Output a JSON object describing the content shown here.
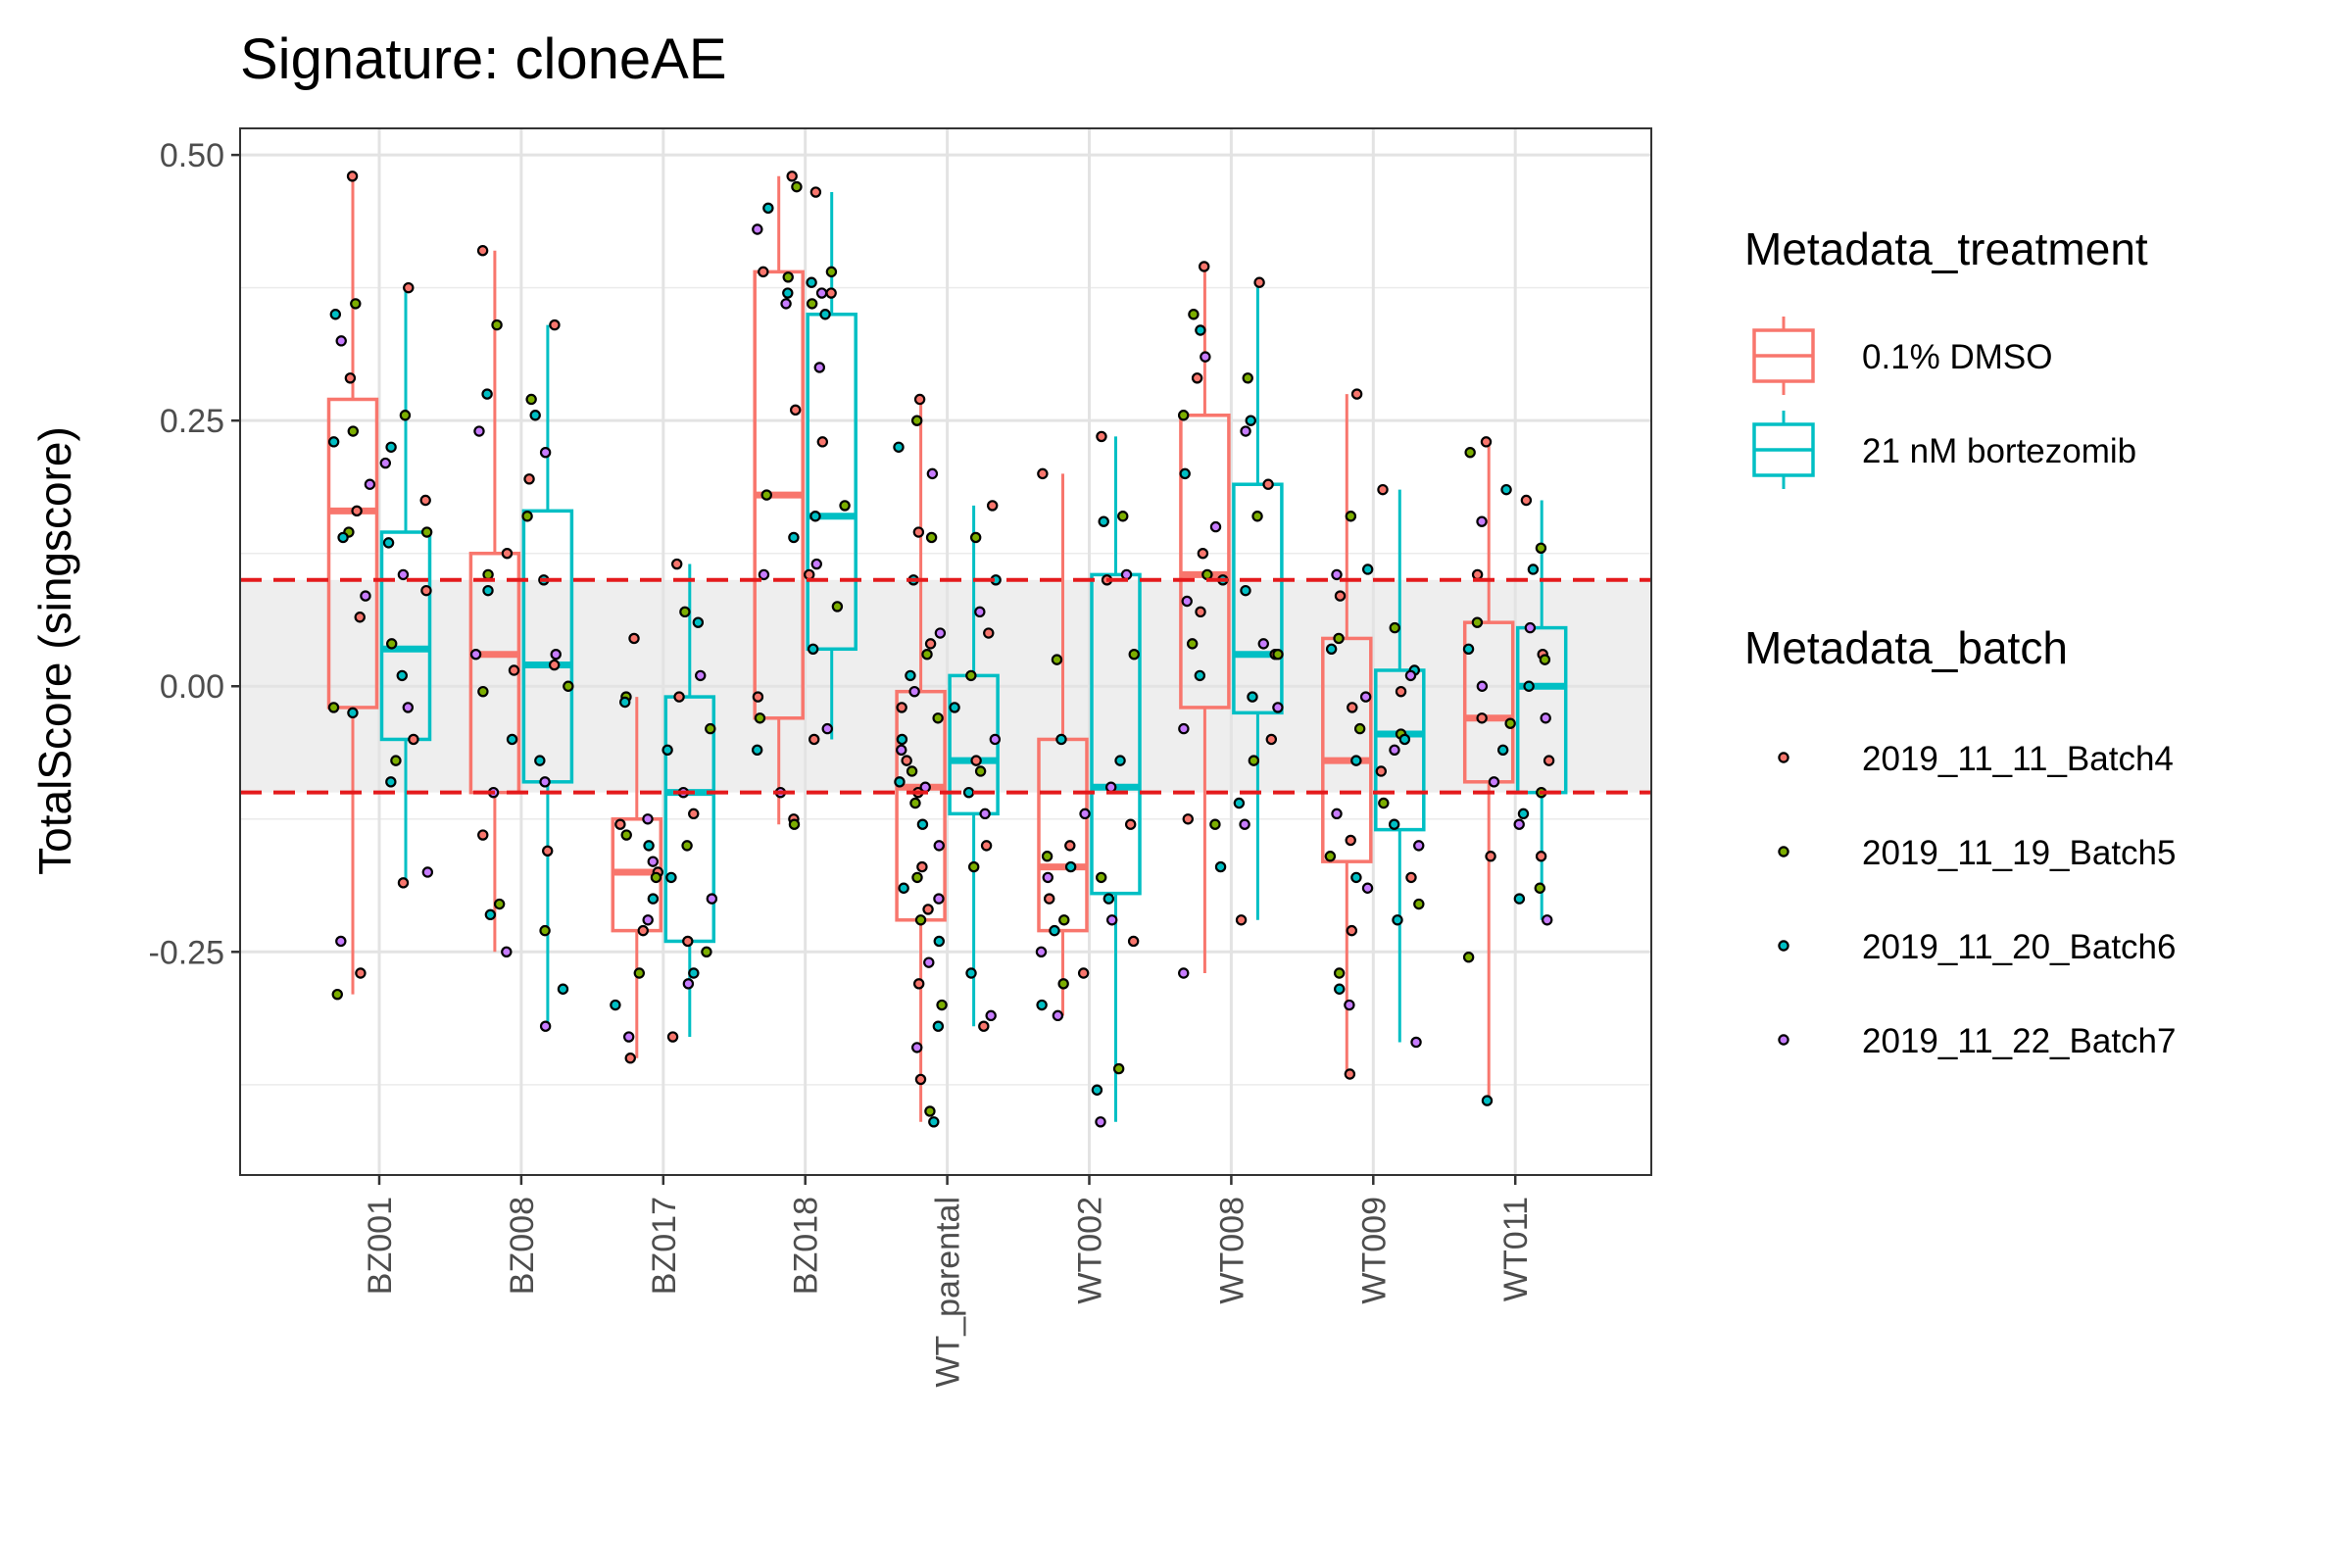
{
  "chart_data": {
    "type": "box",
    "title": "Signature: cloneAE",
    "xlabel": "",
    "ylabel": "TotalScore (singscore)",
    "ylim": [
      -0.46,
      0.525
    ],
    "yticks": [
      "0.50",
      "0.25",
      "0.00",
      "-0.25"
    ],
    "ytick_values": [
      0.5,
      0.25,
      0.0,
      -0.25
    ],
    "grid": true,
    "threshold_lines": [
      0.1,
      -0.1
    ],
    "threshold_color": "#e41a1c",
    "shaded_band": [
      -0.1,
      0.1
    ],
    "categories": [
      "BZ001",
      "BZ008",
      "BZ017",
      "BZ018",
      "WT_parental",
      "WT002",
      "WT008",
      "WT009",
      "WT011"
    ],
    "legend_treatment": {
      "title": "Metadata_treatment",
      "entries": [
        {
          "label": "0.1% DMSO",
          "color": "#f8766d"
        },
        {
          "label": "21 nM bortezomib",
          "color": "#00bfc4"
        }
      ]
    },
    "legend_batch": {
      "title": "Metadata_batch",
      "entries": [
        {
          "label": "2019_11_11_Batch4",
          "color": "#f8766d"
        },
        {
          "label": "2019_11_19_Batch5",
          "color": "#7cae00"
        },
        {
          "label": "2019_11_20_Batch6",
          "color": "#00bfc4"
        },
        {
          "label": "2019_11_22_Batch7",
          "color": "#c77cff"
        }
      ]
    },
    "series": [
      {
        "name": "0.1% DMSO",
        "color": "#f8766d",
        "boxes": [
          {
            "category": "BZ001",
            "min": -0.29,
            "q1": -0.02,
            "median": 0.165,
            "q3": 0.27,
            "max": 0.48
          },
          {
            "category": "BZ008",
            "min": -0.25,
            "q1": -0.1,
            "median": 0.03,
            "q3": 0.125,
            "max": 0.41
          },
          {
            "category": "BZ017",
            "min": -0.35,
            "q1": -0.23,
            "median": -0.175,
            "q3": -0.125,
            "max": -0.01
          },
          {
            "category": "BZ018",
            "min": -0.13,
            "q1": -0.03,
            "median": 0.18,
            "q3": 0.39,
            "max": 0.48
          },
          {
            "category": "WT_parental",
            "min": -0.41,
            "q1": -0.22,
            "median": -0.095,
            "q3": -0.005,
            "max": 0.27
          },
          {
            "category": "WT002",
            "min": -0.31,
            "q1": -0.23,
            "median": -0.17,
            "q3": -0.05,
            "max": 0.2
          },
          {
            "category": "WT008",
            "min": -0.27,
            "q1": -0.02,
            "median": 0.105,
            "q3": 0.255,
            "max": 0.395
          },
          {
            "category": "WT009",
            "min": -0.365,
            "q1": -0.165,
            "median": -0.07,
            "q3": 0.045,
            "max": 0.275
          },
          {
            "category": "WT011",
            "min": -0.39,
            "q1": -0.09,
            "median": -0.03,
            "q3": 0.06,
            "max": 0.23
          }
        ]
      },
      {
        "name": "21 nM bortezomib",
        "color": "#00bfc4",
        "boxes": [
          {
            "category": "BZ001",
            "min": -0.185,
            "q1": -0.05,
            "median": 0.035,
            "q3": 0.145,
            "max": 0.375
          },
          {
            "category": "BZ008",
            "min": -0.32,
            "q1": -0.09,
            "median": 0.02,
            "q3": 0.165,
            "max": 0.34
          },
          {
            "category": "BZ017",
            "min": -0.33,
            "q1": -0.24,
            "median": -0.1,
            "q3": -0.01,
            "max": 0.115
          },
          {
            "category": "BZ018",
            "min": -0.05,
            "q1": 0.035,
            "median": 0.16,
            "q3": 0.35,
            "max": 0.465
          },
          {
            "category": "WT_parental",
            "min": -0.32,
            "q1": -0.12,
            "median": -0.07,
            "q3": 0.01,
            "max": 0.17
          },
          {
            "category": "WT002",
            "min": -0.41,
            "q1": -0.195,
            "median": -0.095,
            "q3": 0.105,
            "max": 0.235
          },
          {
            "category": "WT008",
            "min": -0.22,
            "q1": -0.025,
            "median": 0.03,
            "q3": 0.19,
            "max": 0.38
          },
          {
            "category": "WT009",
            "min": -0.335,
            "q1": -0.135,
            "median": -0.045,
            "q3": 0.015,
            "max": 0.185
          },
          {
            "category": "WT011",
            "min": -0.22,
            "q1": -0.1,
            "median": 0.0,
            "q3": 0.055,
            "max": 0.175
          }
        ]
      }
    ],
    "points": [
      {
        "category": "BZ001",
        "treatment": "0.1% DMSO",
        "values": [
          0.48,
          0.36,
          0.35,
          0.325,
          0.29,
          0.24,
          0.23,
          0.19,
          0.165,
          0.145,
          0.14,
          0.085,
          0.065,
          -0.02,
          -0.025,
          -0.24,
          -0.27,
          -0.29
        ]
      },
      {
        "category": "BZ001",
        "treatment": "21 nM bortezomib",
        "values": [
          0.375,
          0.255,
          0.225,
          0.21,
          0.175,
          0.145,
          0.135,
          0.105,
          0.09,
          0.04,
          0.01,
          -0.02,
          -0.05,
          -0.07,
          -0.09,
          -0.175,
          -0.185
        ]
      },
      {
        "category": "BZ008",
        "treatment": "0.1% DMSO",
        "values": [
          0.41,
          0.34,
          0.275,
          0.24,
          0.125,
          0.105,
          0.09,
          0.03,
          0.015,
          -0.005,
          -0.05,
          -0.1,
          -0.14,
          -0.205,
          -0.215,
          -0.25
        ]
      },
      {
        "category": "BZ008",
        "treatment": "21 nM bortezomib",
        "values": [
          0.34,
          0.27,
          0.255,
          0.22,
          0.195,
          0.16,
          0.1,
          0.03,
          0.02,
          0.0,
          -0.07,
          -0.09,
          -0.155,
          -0.23,
          -0.285,
          -0.32
        ]
      },
      {
        "category": "BZ017",
        "treatment": "0.1% DMSO",
        "values": [
          0.045,
          -0.01,
          -0.015,
          -0.125,
          -0.13,
          -0.14,
          -0.15,
          -0.165,
          -0.175,
          -0.18,
          -0.2,
          -0.22,
          -0.23,
          -0.27,
          -0.3,
          -0.33,
          -0.35
        ]
      },
      {
        "category": "BZ017",
        "treatment": "21 nM bortezomib",
        "values": [
          0.115,
          0.07,
          0.06,
          0.01,
          -0.01,
          -0.04,
          -0.06,
          -0.1,
          -0.12,
          -0.15,
          -0.18,
          -0.2,
          -0.24,
          -0.25,
          -0.27,
          -0.28,
          -0.33
        ]
      },
      {
        "category": "BZ018",
        "treatment": "0.1% DMSO",
        "values": [
          0.48,
          0.47,
          0.45,
          0.43,
          0.39,
          0.385,
          0.37,
          0.36,
          0.26,
          0.18,
          0.14,
          0.105,
          -0.01,
          -0.03,
          -0.06,
          -0.1,
          -0.125,
          -0.13
        ]
      },
      {
        "category": "BZ018",
        "treatment": "21 nM bortezomib",
        "values": [
          0.465,
          0.39,
          0.38,
          0.37,
          0.37,
          0.36,
          0.35,
          0.3,
          0.23,
          0.17,
          0.16,
          0.115,
          0.105,
          0.075,
          0.035,
          -0.04,
          -0.05
        ]
      },
      {
        "category": "WT_parental",
        "treatment": "0.1% DMSO",
        "values": [
          0.27,
          0.25,
          0.225,
          0.2,
          0.145,
          0.14,
          0.1,
          0.05,
          0.04,
          0.03,
          0.01,
          -0.005,
          -0.02,
          -0.03,
          -0.05,
          -0.06,
          -0.07,
          -0.08,
          -0.09,
          -0.095,
          -0.1,
          -0.11,
          -0.13,
          -0.15,
          -0.17,
          -0.18,
          -0.19,
          -0.2,
          -0.21,
          -0.22,
          -0.24,
          -0.26,
          -0.28,
          -0.3,
          -0.32,
          -0.34,
          -0.37,
          -0.4,
          -0.41
        ]
      },
      {
        "category": "WT_parental",
        "treatment": "21 nM bortezomib",
        "values": [
          0.17,
          0.14,
          0.1,
          0.07,
          0.05,
          0.01,
          -0.02,
          -0.05,
          -0.07,
          -0.08,
          -0.1,
          -0.12,
          -0.15,
          -0.17,
          -0.27,
          -0.31,
          -0.32
        ]
      },
      {
        "category": "WT002",
        "treatment": "0.1% DMSO",
        "values": [
          0.2,
          0.025,
          -0.05,
          -0.12,
          -0.15,
          -0.16,
          -0.17,
          -0.18,
          -0.2,
          -0.22,
          -0.23,
          -0.25,
          -0.27,
          -0.28,
          -0.3,
          -0.31
        ]
      },
      {
        "category": "WT002",
        "treatment": "21 nM bortezomib",
        "values": [
          0.235,
          0.16,
          0.155,
          0.105,
          0.1,
          0.03,
          -0.07,
          -0.095,
          -0.13,
          -0.18,
          -0.2,
          -0.22,
          -0.24,
          -0.36,
          -0.38,
          -0.41
        ]
      },
      {
        "category": "WT008",
        "treatment": "0.1% DMSO",
        "values": [
          0.395,
          0.35,
          0.335,
          0.31,
          0.29,
          0.255,
          0.2,
          0.15,
          0.125,
          0.105,
          0.1,
          0.08,
          0.07,
          0.04,
          0.01,
          -0.04,
          -0.125,
          -0.13,
          -0.17,
          -0.27
        ]
      },
      {
        "category": "WT008",
        "treatment": "21 nM bortezomib",
        "values": [
          0.38,
          0.29,
          0.25,
          0.24,
          0.19,
          0.16,
          0.09,
          0.04,
          0.03,
          0.03,
          -0.01,
          -0.02,
          -0.05,
          -0.07,
          -0.11,
          -0.13,
          -0.22
        ]
      },
      {
        "category": "WT009",
        "treatment": "0.1% DMSO",
        "values": [
          0.275,
          0.16,
          0.11,
          0.105,
          0.085,
          0.045,
          0.035,
          -0.01,
          -0.02,
          -0.04,
          -0.07,
          -0.12,
          -0.145,
          -0.16,
          -0.18,
          -0.19,
          -0.23,
          -0.27,
          -0.285,
          -0.3,
          -0.365
        ]
      },
      {
        "category": "WT009",
        "treatment": "21 nM bortezomib",
        "values": [
          0.185,
          0.055,
          0.015,
          0.01,
          -0.005,
          -0.045,
          -0.05,
          -0.06,
          -0.08,
          -0.11,
          -0.13,
          -0.15,
          -0.18,
          -0.205,
          -0.22,
          -0.335
        ]
      },
      {
        "category": "WT011",
        "treatment": "0.1% DMSO",
        "values": [
          0.23,
          0.22,
          0.185,
          0.155,
          0.105,
          0.06,
          0.035,
          0.0,
          -0.03,
          -0.035,
          -0.06,
          -0.09,
          -0.16,
          -0.255,
          -0.39
        ]
      },
      {
        "category": "WT011",
        "treatment": "21 nM bortezomib",
        "values": [
          0.175,
          0.13,
          0.11,
          0.055,
          0.03,
          0.025,
          0.0,
          -0.03,
          -0.07,
          -0.1,
          -0.12,
          -0.13,
          -0.16,
          -0.19,
          -0.2,
          -0.22
        ]
      }
    ]
  }
}
